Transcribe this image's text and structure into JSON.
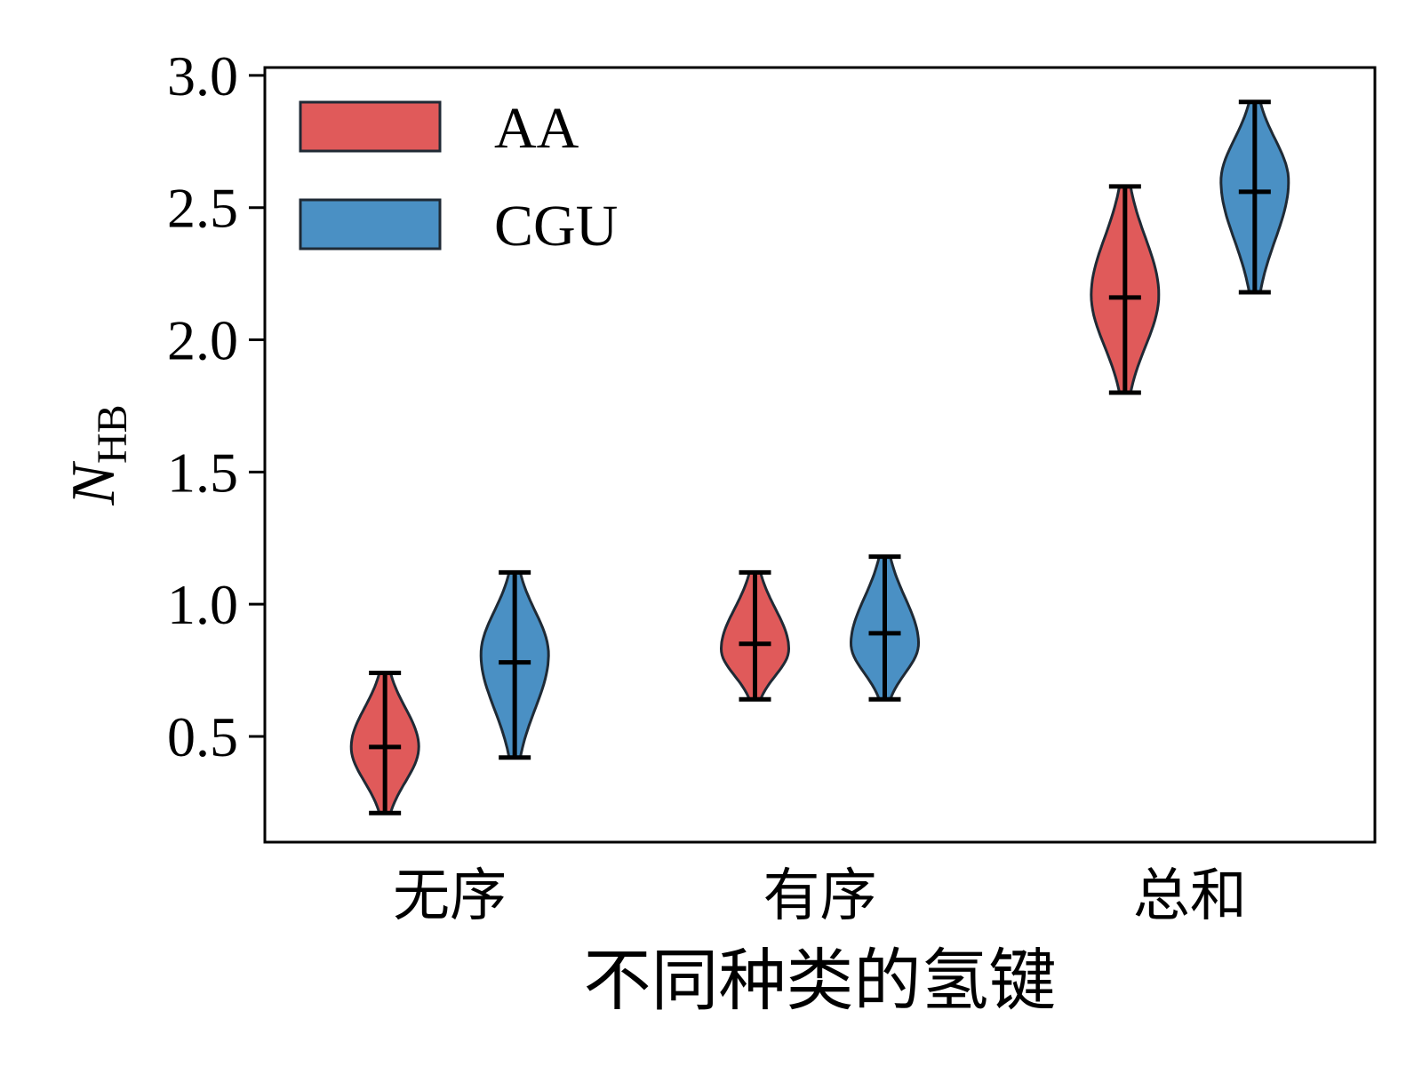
{
  "chart_data": {
    "type": "violin",
    "categories": [
      "无序",
      "有序",
      "总和"
    ],
    "xlabel": "不同种类的氢键",
    "ylabel": {
      "main": "N",
      "subscript": "HB"
    },
    "ylim": [
      0.1,
      3.03
    ],
    "yticks": [
      "0.5",
      "1.0",
      "1.5",
      "2.0",
      "2.5",
      "3.0"
    ],
    "grid": false,
    "legend": {
      "position": "top-left",
      "entries": [
        "AA",
        "CGU"
      ]
    },
    "series": [
      {
        "name": "AA",
        "color": "#e05a5a",
        "values": [
          {
            "category": "无序",
            "min": 0.21,
            "median": 0.46,
            "max": 0.74,
            "peak": 0.46
          },
          {
            "category": "有序",
            "min": 0.64,
            "median": 0.85,
            "max": 1.12,
            "peak": 0.83
          },
          {
            "category": "总和",
            "min": 1.8,
            "median": 2.16,
            "max": 2.58,
            "peak": 2.17
          }
        ]
      },
      {
        "name": "CGU",
        "color": "#4a90c4",
        "values": [
          {
            "category": "无序",
            "min": 0.42,
            "median": 0.78,
            "max": 1.12,
            "peak": 0.81
          },
          {
            "category": "有序",
            "min": 0.64,
            "median": 0.89,
            "max": 1.18,
            "peak": 0.85
          },
          {
            "category": "总和",
            "min": 2.18,
            "median": 2.56,
            "max": 2.9,
            "peak": 2.6
          }
        ]
      }
    ]
  }
}
